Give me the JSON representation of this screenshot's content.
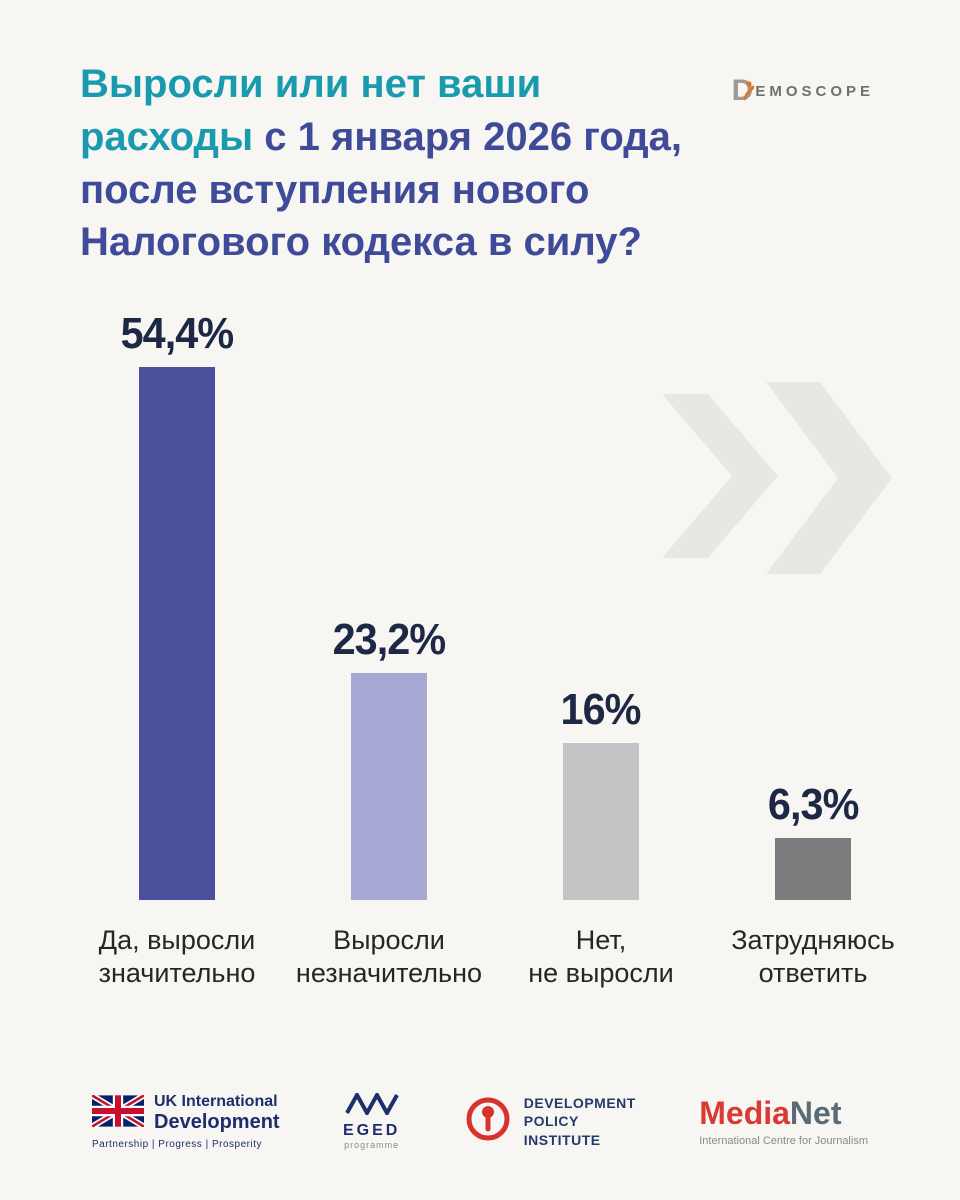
{
  "header": {
    "title_lines": [
      {
        "accent": "Выросли или нет ваши",
        "rest": ""
      },
      {
        "accent": "расходы",
        "rest": " с 1 января 2026 года,"
      },
      {
        "accent": "",
        "rest": "после вступления нового"
      },
      {
        "accent": "",
        "rest": "Налогового кодекса в силу?"
      }
    ],
    "logo_d": "D",
    "logo_rest": "EMOSCOPE"
  },
  "chart_data": {
    "type": "bar",
    "title": "Выросли или нет ваши расходы с 1 января 2026 года, после вступления нового Налогового кодекса в силу?",
    "categories": [
      "Да, выросли значительно",
      "Выросли незначительно",
      "Нет, не выросли",
      "Затрудняюсь ответить"
    ],
    "values": [
      54.4,
      23.2,
      16,
      6.3
    ],
    "value_labels": [
      "54,4%",
      "23,2%",
      "16%",
      "6,3%"
    ],
    "bar_colors": [
      "#4c4f9b",
      "#a7a8d3",
      "#c3c3c5",
      "#7b7b7d"
    ],
    "category_lines": [
      [
        "Да, выросли",
        "значительно"
      ],
      [
        "Выросли",
        "незначительно"
      ],
      [
        "Нет,",
        "не выросли"
      ],
      [
        "Затрудняюсь",
        "ответить"
      ]
    ],
    "ylim": [
      0,
      60
    ],
    "grid": false,
    "legend": false,
    "accent_color": "#199aae",
    "title_color": "#3f4a99",
    "value_label_color": "#1c2844"
  },
  "footer": {
    "uk": {
      "line1": "UK International",
      "line2": "Development",
      "tagline": "Partnership   |   Progress   |   Prosperity"
    },
    "eged": {
      "name": "EGED",
      "sub": "programme"
    },
    "dpi": {
      "line1": "DEVELOPMENT",
      "line2": "POLICY",
      "line3": "INSTITUTE"
    },
    "medianet": {
      "part1": "Media",
      "part2": "Net",
      "sub": "International Centre for Journalism"
    }
  }
}
